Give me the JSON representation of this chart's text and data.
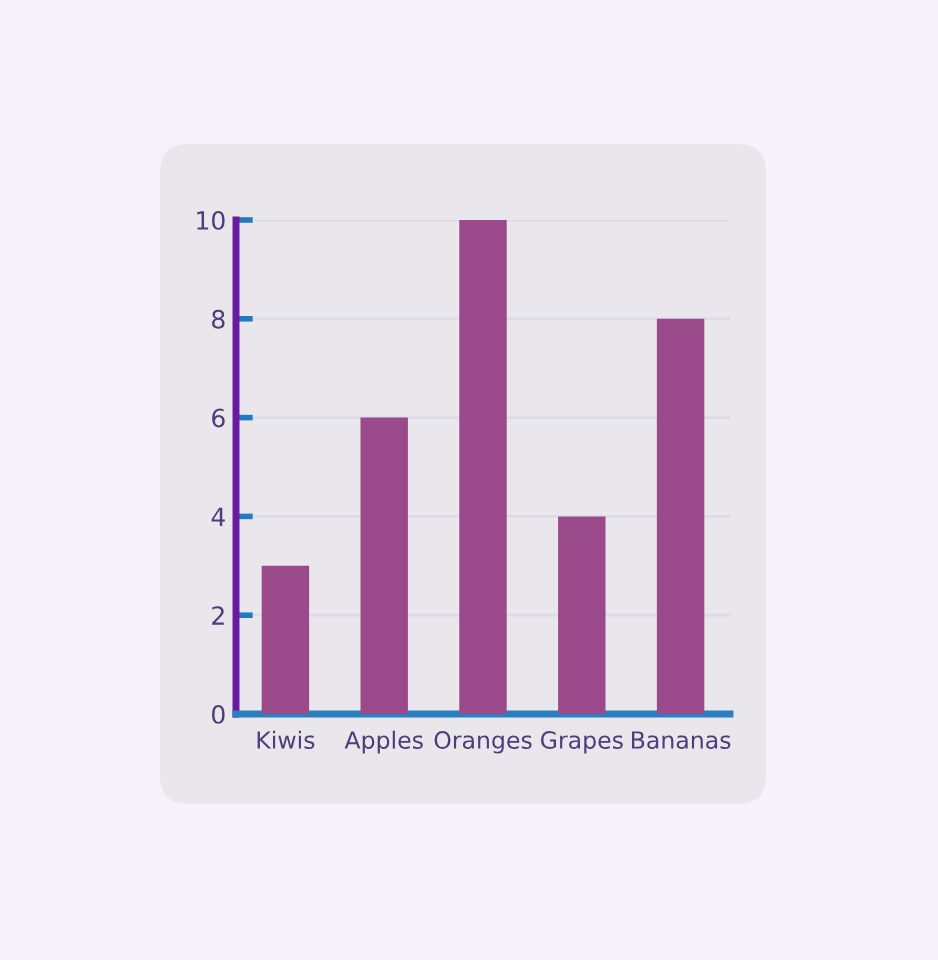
{
  "chart_data": {
    "type": "bar",
    "categories": [
      "Kiwis",
      "Apples",
      "Oranges",
      "Grapes",
      "Bananas"
    ],
    "values": [
      3,
      6,
      10,
      4,
      8
    ],
    "color": "#9a4a8a",
    "ylim": [
      0,
      10
    ],
    "yticks": [
      0,
      2,
      4,
      6,
      8,
      10
    ],
    "grid": "y"
  }
}
